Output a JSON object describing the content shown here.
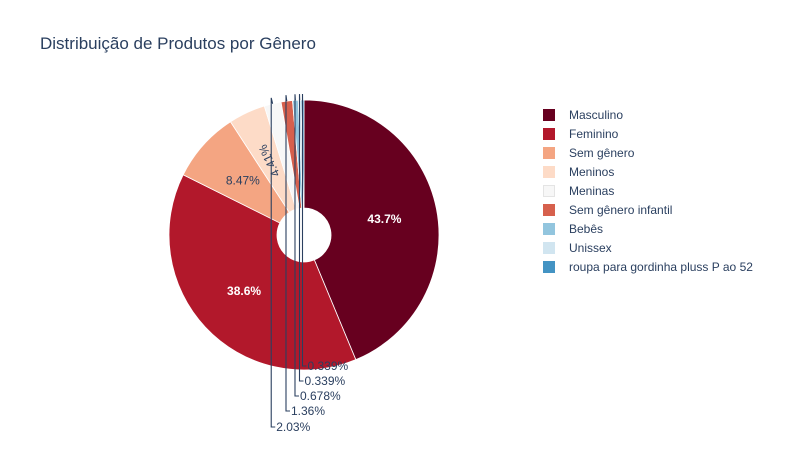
{
  "chart_data": {
    "type": "pie",
    "title": "Distribuição de Produtos por Gênero",
    "hole": true,
    "categories": [
      "Masculino",
      "Feminino",
      "Sem gênero",
      "Meninos",
      "Meninas",
      "Sem gênero infantil",
      "Bebês",
      "Unissex",
      "roupa para gordinha pluss P ao 52"
    ],
    "values": [
      43.7,
      38.6,
      8.47,
      4.41,
      2.03,
      1.36,
      0.678,
      0.339,
      0.339
    ],
    "labels": [
      "43.7%",
      "38.6%",
      "8.47%",
      "4.41%",
      "2.03%",
      "1.36%",
      "0.678%",
      "0.339%",
      "0.339%"
    ],
    "colors": [
      "#67001f",
      "#b2182b",
      "#f4a582",
      "#fddbc7",
      "#f7f7f7",
      "#d6604d",
      "#92c5de",
      "#d1e5f0",
      "#4393c3"
    ],
    "legend_position": "right"
  }
}
